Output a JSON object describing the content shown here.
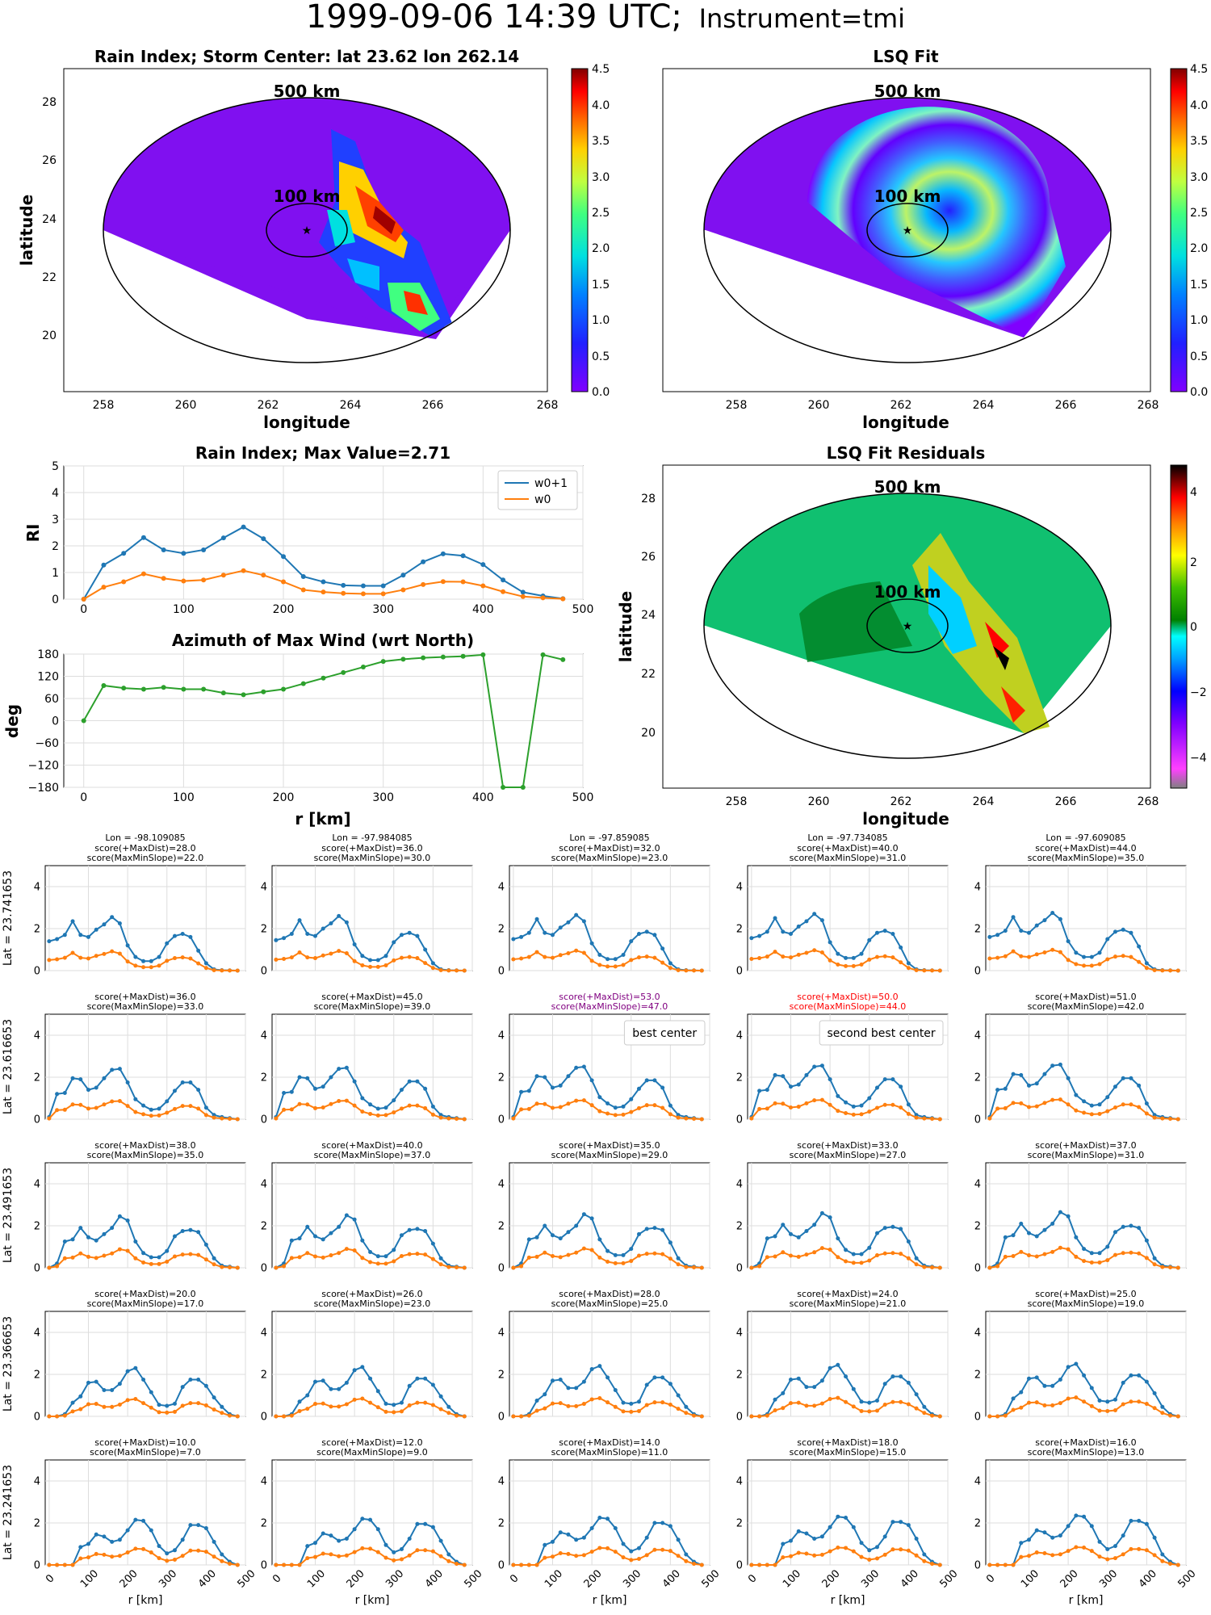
{
  "figure": {
    "title_main": "1999-09-06 14:39 UTC;",
    "title_instrument": "Instrument=tmi"
  },
  "panels": {
    "rain_map": {
      "title": "Rain Index; Storm Center: lat 23.62 lon 262.14",
      "xlabel": "longitude",
      "ylabel": "latitude",
      "ring_outer": "500 km",
      "ring_inner": "100 km",
      "xticks": [
        "258",
        "260",
        "262",
        "264",
        "266",
        "268"
      ],
      "yticks": [
        "20",
        "22",
        "24",
        "26",
        "28"
      ],
      "cbar_ticks": [
        "0.0",
        "0.5",
        "1.0",
        "1.5",
        "2.0",
        "2.5",
        "3.0",
        "3.5",
        "4.0",
        "4.5"
      ]
    },
    "lsq_map": {
      "title": "LSQ Fit",
      "xlabel": "longitude",
      "ring_outer": "500 km",
      "ring_inner": "100 km",
      "xticks": [
        "258",
        "260",
        "262",
        "264",
        "266",
        "268"
      ],
      "cbar_ticks": [
        "0.0",
        "0.5",
        "1.0",
        "1.5",
        "2.0",
        "2.5",
        "3.0",
        "3.5",
        "4.0",
        "4.5"
      ]
    },
    "resid_map": {
      "title": "LSQ Fit Residuals",
      "xlabel": "longitude",
      "ylabel": "latitude",
      "ring_outer": "500 km",
      "ring_inner": "100 km",
      "xticks": [
        "258",
        "260",
        "262",
        "264",
        "266",
        "268"
      ],
      "yticks": [
        "20",
        "22",
        "24",
        "26",
        "28"
      ],
      "cbar_ticks": [
        "4",
        "2",
        "0",
        "−2",
        "−4"
      ]
    }
  },
  "chart_data": [
    {
      "type": "line",
      "title": "Rain Index; Max Value=2.71",
      "ylabel": "RI",
      "ylim": [
        0,
        5
      ],
      "xlim": [
        -20,
        500
      ],
      "xticks": [
        "0",
        "100",
        "200",
        "300",
        "400",
        "500"
      ],
      "yticks": [
        "0",
        "1",
        "2",
        "3",
        "4",
        "5"
      ],
      "legend": "top-right",
      "x": [
        0,
        20,
        40,
        60,
        80,
        100,
        120,
        140,
        160,
        180,
        200,
        220,
        240,
        260,
        280,
        300,
        320,
        340,
        360,
        380,
        400,
        420,
        440,
        460,
        480
      ],
      "series": [
        {
          "name": "w0+1",
          "color": "#1f77b4",
          "values": [
            0,
            1.28,
            1.72,
            2.31,
            1.85,
            1.72,
            1.85,
            2.3,
            2.71,
            2.27,
            1.6,
            0.85,
            0.65,
            0.52,
            0.5,
            0.5,
            0.9,
            1.4,
            1.7,
            1.63,
            1.3,
            0.72,
            0.26,
            0.12,
            0.02
          ]
        },
        {
          "name": "w0",
          "color": "#ff7f0e",
          "values": [
            0,
            0.45,
            0.65,
            0.95,
            0.78,
            0.68,
            0.72,
            0.9,
            1.07,
            0.9,
            0.65,
            0.35,
            0.27,
            0.22,
            0.2,
            0.2,
            0.35,
            0.55,
            0.66,
            0.65,
            0.5,
            0.28,
            0.1,
            0.05,
            0.01
          ]
        }
      ]
    },
    {
      "type": "line",
      "title": "Azimuth of Max Wind (wrt North)",
      "ylabel": "deg",
      "xlabel": "r [km]",
      "ylim": [
        -180,
        180
      ],
      "xlim": [
        -20,
        500
      ],
      "xticks": [
        "0",
        "100",
        "200",
        "300",
        "400",
        "500"
      ],
      "yticks": [
        "180",
        "120",
        "60",
        "0",
        "−60",
        "−120",
        "−180"
      ],
      "x": [
        0,
        20,
        40,
        60,
        80,
        100,
        120,
        140,
        160,
        180,
        200,
        220,
        240,
        260,
        280,
        300,
        320,
        340,
        360,
        380,
        400,
        420,
        440,
        460,
        480
      ],
      "series": [
        {
          "color": "#2ca02c",
          "values": [
            0,
            95,
            88,
            85,
            90,
            85,
            85,
            75,
            70,
            78,
            85,
            100,
            115,
            130,
            145,
            160,
            166,
            170,
            172,
            174,
            178,
            -180,
            -180,
            178,
            165
          ]
        }
      ]
    },
    {
      "type": "line",
      "grid_rows": [
        {
          "lat_label": "Lat = 23.741653"
        },
        {
          "lat_label": "Lat = 23.616653"
        },
        {
          "lat_label": "Lat = 23.491653"
        },
        {
          "lat_label": "Lat = 23.366653"
        },
        {
          "lat_label": "Lat = 23.241653"
        }
      ],
      "lon_labels": [
        "Lon = -98.109085",
        "Lon = -97.984085",
        "Lon = -97.859085",
        "Lon = -97.734085",
        "Lon = -97.609085"
      ],
      "xlabel": "r [km]",
      "xticks": [
        "0",
        "100",
        "200",
        "300",
        "400",
        "500"
      ],
      "yticks": [
        "0",
        "2",
        "4"
      ],
      "ylim": [
        0,
        5
      ],
      "cells": [
        [
          {
            "s1": "score(+MaxDist)=28.0",
            "s2": "score(MaxMinSlope)=22.0",
            "base": "a",
            "color": "#000"
          },
          {
            "s1": "score(+MaxDist)=36.0",
            "s2": "score(MaxMinSlope)=30.0",
            "base": "a",
            "color": "#000"
          },
          {
            "s1": "score(+MaxDist)=32.0",
            "s2": "score(MaxMinSlope)=23.0",
            "base": "a",
            "color": "#000"
          },
          {
            "s1": "score(+MaxDist)=40.0",
            "s2": "score(MaxMinSlope)=31.0",
            "base": "a",
            "color": "#000"
          },
          {
            "s1": "score(+MaxDist)=44.0",
            "s2": "score(MaxMinSlope)=35.0",
            "base": "a",
            "color": "#000"
          }
        ],
        [
          {
            "s1": "score(+MaxDist)=36.0",
            "s2": "score(MaxMinSlope)=33.0",
            "base": "b",
            "color": "#000"
          },
          {
            "s1": "score(+MaxDist)=45.0",
            "s2": "score(MaxMinSlope)=39.0",
            "base": "b",
            "color": "#000"
          },
          {
            "s1": "score(+MaxDist)=53.0",
            "s2": "score(MaxMinSlope)=47.0",
            "base": "b",
            "color": "#800080",
            "note": "best center"
          },
          {
            "s1": "score(+MaxDist)=50.0",
            "s2": "score(MaxMinSlope)=44.0",
            "base": "b",
            "color": "#ff0000",
            "note": "second best center"
          },
          {
            "s1": "score(+MaxDist)=51.0",
            "s2": "score(MaxMinSlope)=42.0",
            "base": "b",
            "color": "#000"
          }
        ],
        [
          {
            "s1": "score(+MaxDist)=38.0",
            "s2": "score(MaxMinSlope)=35.0",
            "base": "c",
            "color": "#000"
          },
          {
            "s1": "score(+MaxDist)=40.0",
            "s2": "score(MaxMinSlope)=37.0",
            "base": "c",
            "color": "#000"
          },
          {
            "s1": "score(+MaxDist)=35.0",
            "s2": "score(MaxMinSlope)=29.0",
            "base": "c",
            "color": "#000"
          },
          {
            "s1": "score(+MaxDist)=33.0",
            "s2": "score(MaxMinSlope)=27.0",
            "base": "c",
            "color": "#000"
          },
          {
            "s1": "score(+MaxDist)=37.0",
            "s2": "score(MaxMinSlope)=31.0",
            "base": "c",
            "color": "#000"
          }
        ],
        [
          {
            "s1": "score(+MaxDist)=20.0",
            "s2": "score(MaxMinSlope)=17.0",
            "base": "d",
            "color": "#000"
          },
          {
            "s1": "score(+MaxDist)=26.0",
            "s2": "score(MaxMinSlope)=23.0",
            "base": "d",
            "color": "#000"
          },
          {
            "s1": "score(+MaxDist)=28.0",
            "s2": "score(MaxMinSlope)=25.0",
            "base": "d",
            "color": "#000"
          },
          {
            "s1": "score(+MaxDist)=24.0",
            "s2": "score(MaxMinSlope)=21.0",
            "base": "d",
            "color": "#000"
          },
          {
            "s1": "score(+MaxDist)=25.0",
            "s2": "score(MaxMinSlope)=19.0",
            "base": "d",
            "color": "#000"
          }
        ],
        [
          {
            "s1": "score(+MaxDist)=10.0",
            "s2": "score(MaxMinSlope)=7.0",
            "base": "e",
            "color": "#000"
          },
          {
            "s1": "score(+MaxDist)=12.0",
            "s2": "score(MaxMinSlope)=9.0",
            "base": "e",
            "color": "#000"
          },
          {
            "s1": "score(+MaxDist)=14.0",
            "s2": "score(MaxMinSlope)=11.0",
            "base": "e",
            "color": "#000"
          },
          {
            "s1": "score(+MaxDist)=18.0",
            "s2": "score(MaxMinSlope)=15.0",
            "base": "e",
            "color": "#000"
          },
          {
            "s1": "score(+MaxDist)=16.0",
            "s2": "score(MaxMinSlope)=13.0",
            "base": "e",
            "color": "#000"
          }
        ]
      ],
      "profiles": {
        "a": [
          1.5,
          1.6,
          1.8,
          2.45,
          1.8,
          1.7,
          2.05,
          2.3,
          2.65,
          2.35,
          1.3,
          0.75,
          0.55,
          0.55,
          0.75,
          1.4,
          1.75,
          1.85,
          1.7,
          1.05,
          0.35,
          0.06,
          0.02,
          0.01,
          0
        ],
        "b": [
          0.1,
          1.3,
          1.35,
          2.05,
          2.0,
          1.5,
          1.6,
          2.05,
          2.45,
          2.5,
          1.85,
          1.05,
          0.75,
          0.55,
          0.6,
          0.95,
          1.45,
          1.85,
          1.85,
          1.5,
          0.65,
          0.2,
          0.1,
          0.05,
          0
        ],
        "c": [
          0,
          0.2,
          1.35,
          1.45,
          2.0,
          1.55,
          1.4,
          1.7,
          2.0,
          2.55,
          2.35,
          1.35,
          0.8,
          0.6,
          0.6,
          0.9,
          1.6,
          1.85,
          1.9,
          1.8,
          1.2,
          0.45,
          0.1,
          0.05,
          0
        ],
        "d": [
          0,
          0,
          0.1,
          0.75,
          1.05,
          1.7,
          1.75,
          1.35,
          1.35,
          1.65,
          2.25,
          2.4,
          1.85,
          1.25,
          0.65,
          0.6,
          0.7,
          1.5,
          1.85,
          1.85,
          1.55,
          1.0,
          0.45,
          0.1,
          0
        ],
        "e": [
          0,
          0,
          0,
          0,
          0.95,
          1.1,
          1.55,
          1.45,
          1.2,
          1.3,
          1.75,
          2.25,
          2.2,
          1.75,
          1.0,
          0.65,
          0.8,
          1.3,
          2.0,
          2.0,
          1.85,
          1.2,
          0.5,
          0.15,
          0
        ]
      }
    }
  ]
}
